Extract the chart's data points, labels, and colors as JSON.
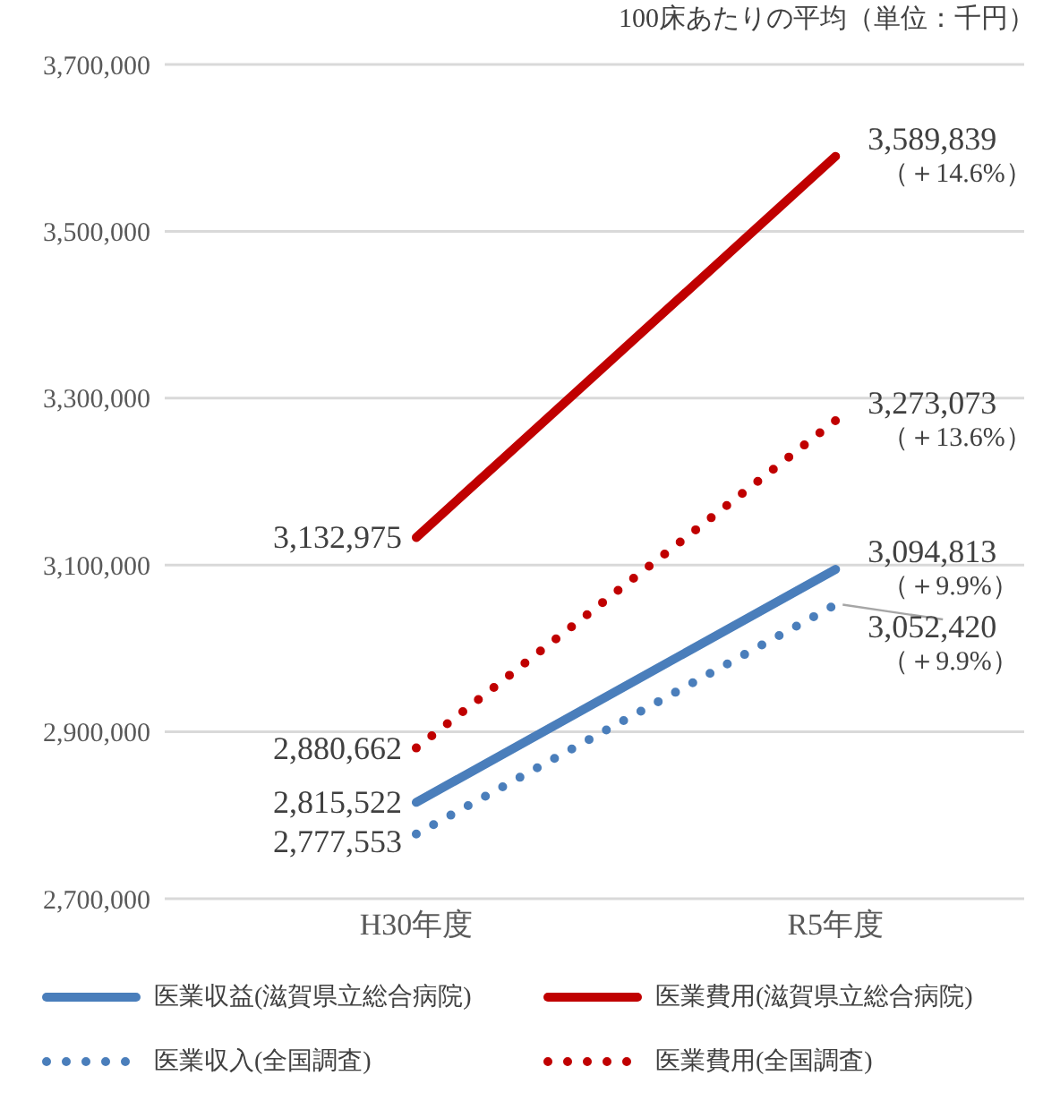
{
  "chart_data": {
    "type": "line",
    "title": "100床あたりの平均（単位：千円）",
    "categories": [
      "H30年度",
      "R5年度"
    ],
    "ylim": [
      2700000,
      3700000
    ],
    "yticks": [
      {
        "value": 2700000,
        "label": "2,700,000"
      },
      {
        "value": 2900000,
        "label": "2,900,000"
      },
      {
        "value": 3100000,
        "label": "3,100,000"
      },
      {
        "value": 3300000,
        "label": "3,300,000"
      },
      {
        "value": 3500000,
        "label": "3,500,000"
      },
      {
        "value": 3700000,
        "label": "3,700,000"
      }
    ],
    "grid": "y",
    "legend": "bottom",
    "marker": "none",
    "series": [
      {
        "name": "医業収益(滋賀県立総合病院)",
        "color": "#4a7ebb",
        "line_style": "solid",
        "values": [
          2815522,
          3094813
        ],
        "value_labels": [
          "2,815,522",
          "3,094,813\n（＋9.9%）"
        ]
      },
      {
        "name": "医業費用(滋賀県立総合病院)",
        "color": "#c00000",
        "line_style": "solid",
        "values": [
          3132975,
          3589839
        ],
        "value_labels": [
          "3,132,975",
          "3,589,839\n（＋14.6%）"
        ]
      },
      {
        "name": "医業収入(全国調査)",
        "color": "#4a7ebb",
        "line_style": "dotted",
        "values": [
          2777553,
          3052420
        ],
        "value_labels": [
          "2,777,553",
          "3,052,420\n（＋9.9%）"
        ]
      },
      {
        "name": "医業費用(全国調査)",
        "color": "#c00000",
        "line_style": "dotted",
        "values": [
          2880662,
          3273073
        ],
        "value_labels": [
          "2,880,662",
          "3,273,073\n（＋13.6%）"
        ]
      }
    ]
  }
}
